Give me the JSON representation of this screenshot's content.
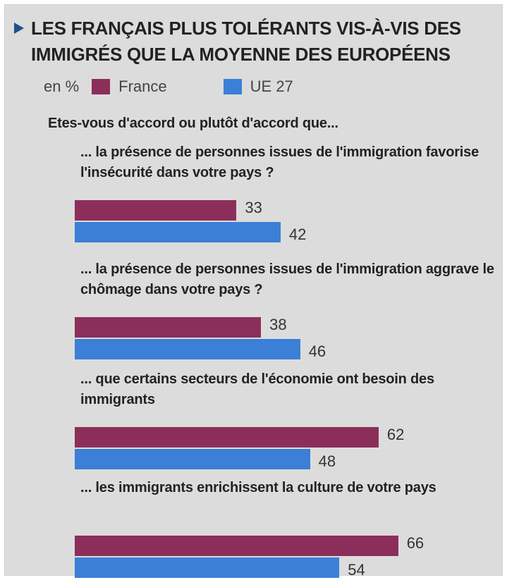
{
  "title": "LES FRANÇAIS PLUS TOLÉRANTS VIS-À-VIS DES IMMIGRÉS QUE LA MOYENNE DES EUROPÉENS",
  "unit_label": "en %",
  "colors": {
    "france": "#8c2e5a",
    "eu": "#3b7fd6"
  },
  "question": "Etes-vous d'accord ou plutôt d'accord que...",
  "chart_data": {
    "type": "bar",
    "orientation": "horizontal",
    "title": "LES FRANÇAIS PLUS TOLÉRANTS VIS-À-VIS DES IMMIGRÉS QUE LA MOYENNE DES EUROPÉENS",
    "categories": [
      "... la présence de personnes issues de l'immigration favorise l'insécurité dans votre pays ?",
      "... la présence de personnes issues de l'immigration aggrave le chômage dans votre pays ?",
      "... que certains secteurs de l'économie ont besoin des immigrants",
      "... les immigrants enrichissent la culture de votre pays"
    ],
    "series": [
      {
        "name": "France",
        "values": [
          33,
          38,
          62,
          66
        ]
      },
      {
        "name": "UE 27",
        "values": [
          42,
          46,
          48,
          54
        ]
      }
    ],
    "legend_position": "top-left"
  }
}
